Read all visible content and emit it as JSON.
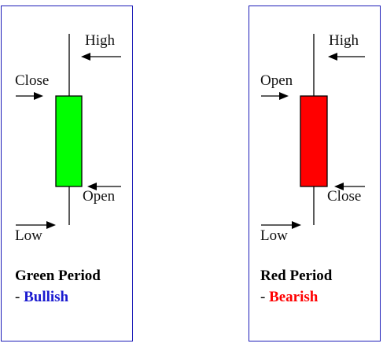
{
  "colors": {
    "border": "#1c1cb8",
    "bullish_body": "#00ff00",
    "bearish_body": "#ff0000",
    "bullish_text": "#1a1ad0",
    "bearish_text": "#ff0000"
  },
  "panels": [
    {
      "id": "green",
      "labels": {
        "high": "High",
        "top": "Close",
        "bottom": "Open",
        "low": "Low"
      },
      "title": "Green Period",
      "dash": "-",
      "sentiment": "Bullish"
    },
    {
      "id": "red",
      "labels": {
        "high": "High",
        "top": "Open",
        "bottom": "Close",
        "low": "Low"
      },
      "title": "Red Period",
      "dash": "-",
      "sentiment": "Bearish"
    }
  ]
}
